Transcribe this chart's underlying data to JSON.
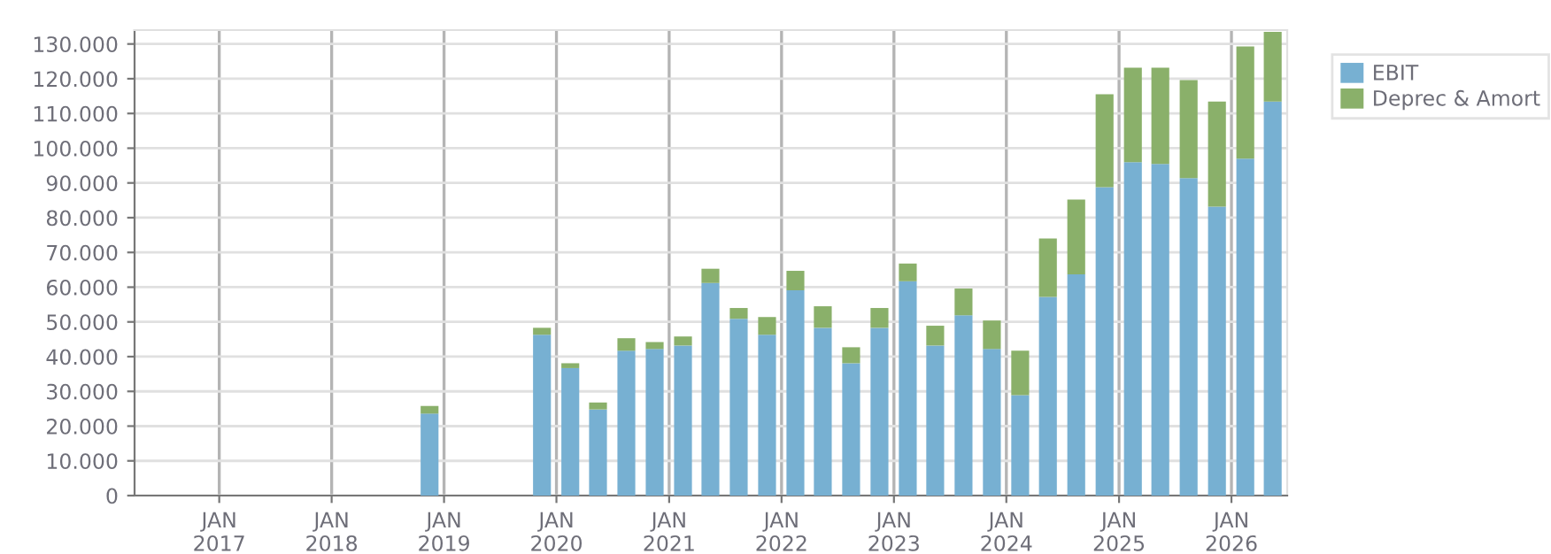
{
  "chart_data": {
    "type": "bar",
    "stacked": true,
    "x": [
      "2018-11-15",
      "2019-11-15",
      "2020-02-15",
      "2020-05-15",
      "2020-08-15",
      "2020-11-15",
      "2021-02-15",
      "2021-05-15",
      "2021-08-15",
      "2021-11-15",
      "2022-02-15",
      "2022-05-15",
      "2022-08-15",
      "2022-11-15",
      "2023-02-15",
      "2023-05-15",
      "2023-08-15",
      "2023-11-15",
      "2024-02-15",
      "2024-05-15",
      "2024-08-15",
      "2024-11-15",
      "2025-02-15",
      "2025-05-15",
      "2025-08-15",
      "2025-11-15",
      "2026-02-15",
      "2026-05-15"
    ],
    "series": [
      {
        "name": "EBIT",
        "color": "#77b0d2",
        "values": [
          23600,
          46300,
          36700,
          24800,
          41700,
          42200,
          43200,
          61200,
          50900,
          46300,
          59100,
          48300,
          38100,
          48300,
          61700,
          43200,
          51900,
          42200,
          28900,
          57200,
          63700,
          88800,
          96000,
          95500,
          91400,
          83200,
          97000,
          113400
        ]
      },
      {
        "name": "Deprec & Amort",
        "color": "#8ab06a",
        "values": [
          2200,
          2000,
          1400,
          2000,
          3600,
          2000,
          2600,
          4100,
          3100,
          5100,
          5600,
          6200,
          4600,
          5700,
          5100,
          5700,
          7700,
          8200,
          12800,
          16800,
          21500,
          26700,
          27200,
          27700,
          28200,
          30200,
          32300,
          20100
        ]
      }
    ],
    "xlim": [
      "2016-04-01",
      "2026-07-01"
    ],
    "xticks": [
      {
        "value": "2017-01-01",
        "label": "JAN\n2017"
      },
      {
        "value": "2018-01-01",
        "label": "JAN\n2018"
      },
      {
        "value": "2019-01-01",
        "label": "JAN\n2019"
      },
      {
        "value": "2020-01-01",
        "label": "JAN\n2020"
      },
      {
        "value": "2021-01-01",
        "label": "JAN\n2021"
      },
      {
        "value": "2022-01-01",
        "label": "JAN\n2022"
      },
      {
        "value": "2023-01-01",
        "label": "JAN\n2023"
      },
      {
        "value": "2024-01-01",
        "label": "JAN\n2024"
      },
      {
        "value": "2025-01-01",
        "label": "JAN\n2025"
      },
      {
        "value": "2026-01-01",
        "label": "JAN\n2026"
      }
    ],
    "ylim": [
      0,
      134000
    ],
    "yticks": [
      0,
      {
        "value": 10000,
        "label": "10.000"
      },
      {
        "value": 20000,
        "label": "20.000"
      },
      {
        "value": 30000,
        "label": "30.000"
      },
      {
        "value": 40000,
        "label": "40.000"
      },
      {
        "value": 50000,
        "label": "50.000"
      },
      {
        "value": 60000,
        "label": "60.000"
      },
      {
        "value": 70000,
        "label": "70.000"
      },
      {
        "value": 80000,
        "label": "80.000"
      },
      {
        "value": 90000,
        "label": "90.000"
      },
      {
        "value": 100000,
        "label": "100.000"
      },
      {
        "value": 110000,
        "label": "110.000"
      },
      {
        "value": 120000,
        "label": "120.000"
      },
      {
        "value": 130000,
        "label": "130.000"
      }
    ],
    "grid": true,
    "legend": "top right"
  }
}
